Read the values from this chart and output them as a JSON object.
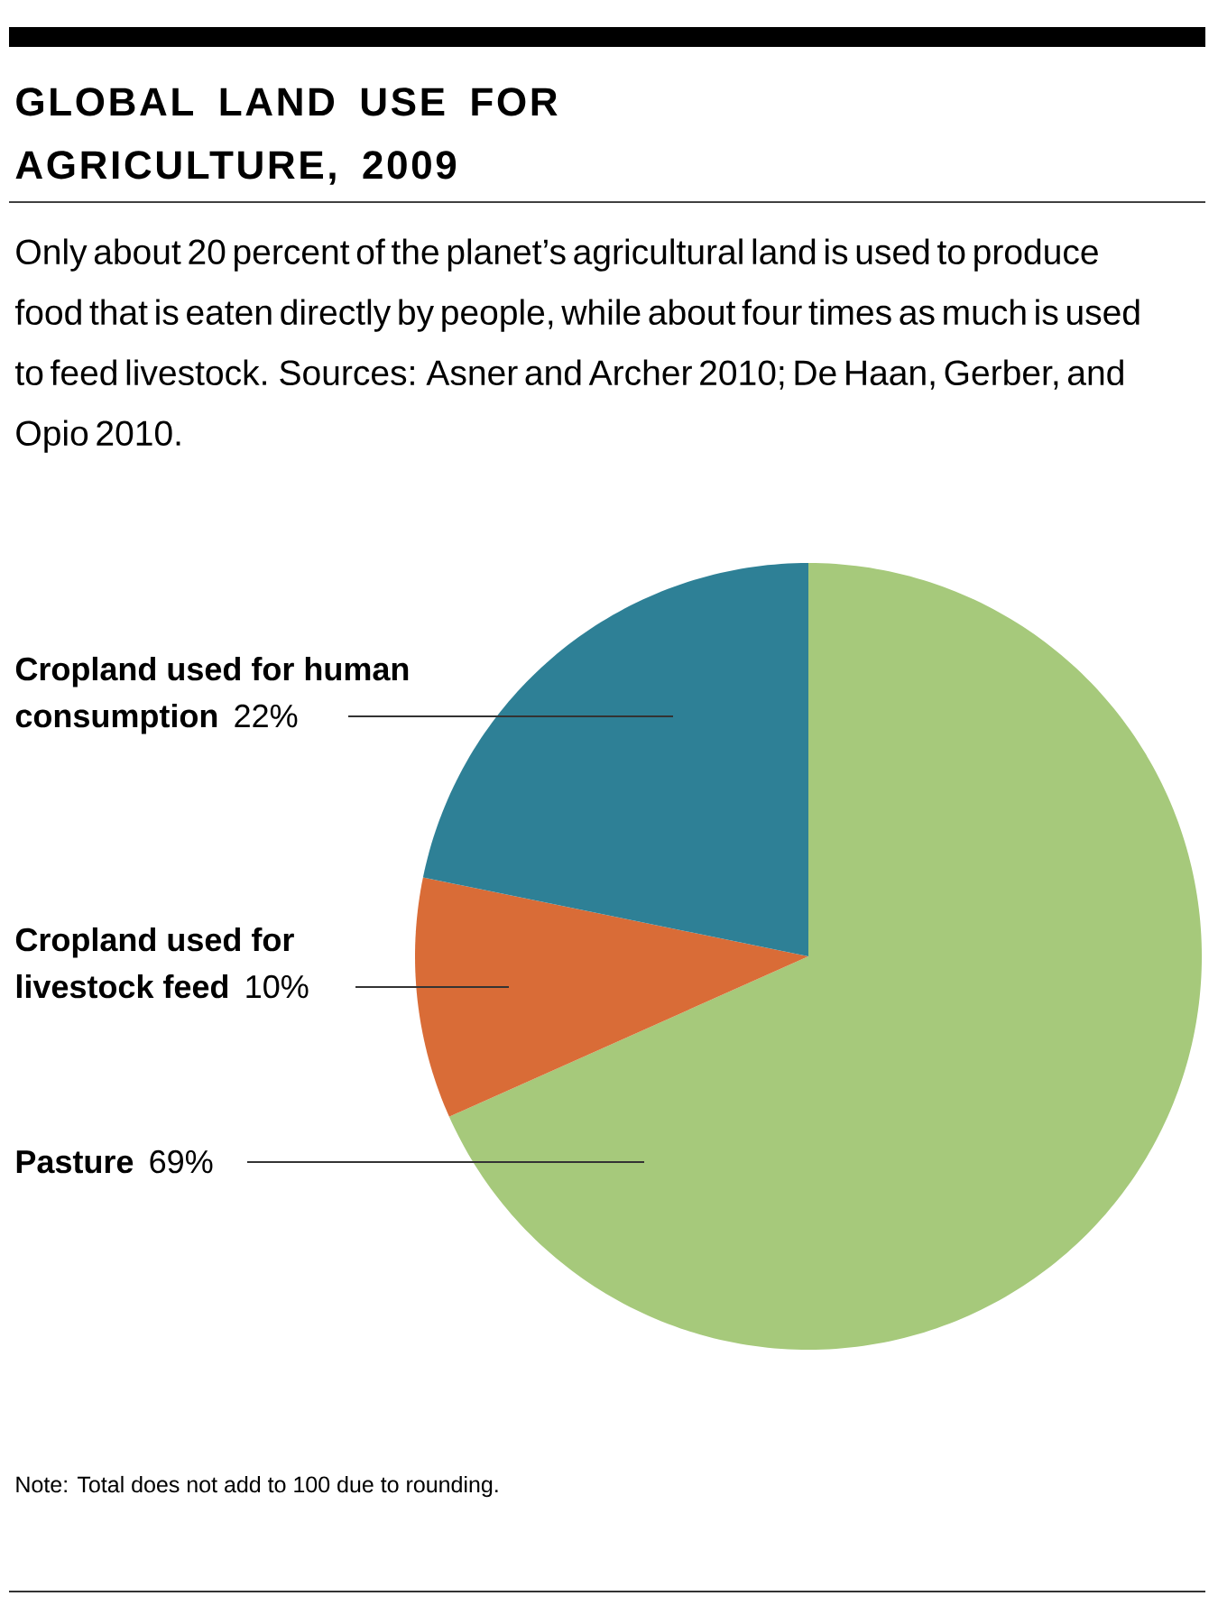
{
  "chart_data": {
    "type": "pie",
    "title": "GLOBAL LAND USE FOR AGRICULTURE, 2009",
    "subtitle": "Only about 20 percent of the planet’s agricultural land is used to produce food that is eaten directly by people, while about four times as much is used to feed livestock. Sources: Asner and Archer 2010; De Haan, Gerber, and Opio 2010.",
    "categories": [
      "Pasture",
      "Cropland used for livestock feed",
      "Cropland used for human consumption"
    ],
    "values": [
      69,
      10,
      22
    ],
    "colors": [
      "#a6c97b",
      "#d96c37",
      "#2e8096"
    ],
    "value_labels": [
      "69%",
      "10%",
      "22%"
    ],
    "annotations": [
      "Note: Total does not add to 100 due to rounding."
    ]
  }
}
